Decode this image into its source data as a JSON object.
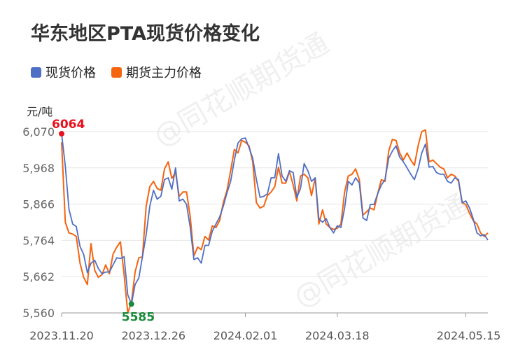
{
  "title": "华东地区PTA现货价格变化",
  "unit_label": "元/吨",
  "watermark": "@同花顺期货通",
  "colors": {
    "spot": "#4f6fc6",
    "futures": "#f5640f",
    "max": "#e8101c",
    "min": "#1a8a3a",
    "grid": "#e6e6e6"
  },
  "chart_data": {
    "type": "line",
    "title": "华东地区PTA现货价格变化",
    "ylabel": "元/吨",
    "ylim": [
      5560,
      6070
    ],
    "yticks": [
      5560,
      5662,
      5764,
      5866,
      5968,
      6070
    ],
    "ytick_labels": [
      "5,560",
      "5,662",
      "5,764",
      "5,866",
      "5,968",
      "6,070"
    ],
    "xtick_labels": [
      "2023.11.20",
      "2023.12.26",
      "2024.02.01",
      "2024.03.18",
      "2024.05.15"
    ],
    "xtick_index": [
      0,
      25,
      50,
      75,
      110
    ],
    "series": [
      {
        "name": "现货价格",
        "values": [
          6064,
          5973,
          5852,
          5810,
          5803,
          5747,
          5725,
          5673,
          5700,
          5708,
          5685,
          5670,
          5675,
          5675,
          5695,
          5715,
          5713,
          5718,
          5611,
          5585,
          5640,
          5658,
          5718,
          5780,
          5860,
          5905,
          5880,
          5888,
          5935,
          5940,
          5908,
          5968,
          5875,
          5880,
          5865,
          5800,
          5710,
          5715,
          5700,
          5750,
          5750,
          5790,
          5810,
          5830,
          5860,
          5898,
          5930,
          5990,
          6038,
          6050,
          6052,
          6025,
          5995,
          5935,
          5885,
          5888,
          5895,
          5940,
          5940,
          6008,
          5945,
          5930,
          5960,
          5955,
          5885,
          5910,
          5980,
          5960,
          5930,
          5940,
          5825,
          5815,
          5825,
          5800,
          5785,
          5805,
          5800,
          5855,
          5930,
          5920,
          5940,
          5925,
          5827,
          5820,
          5865,
          5865,
          5895,
          5920,
          5935,
          5995,
          6015,
          6030,
          5998,
          5985,
          5968,
          5950,
          5935,
          5965,
          6010,
          6035,
          5970,
          5972,
          5955,
          5950,
          5950,
          5930,
          5925,
          5940,
          5935,
          5870,
          5875,
          5855,
          5825,
          5785,
          5777,
          5780,
          5765
        ]
      },
      {
        "name": "期货主力价格",
        "values": [
          6040,
          5815,
          5785,
          5782,
          5775,
          5700,
          5660,
          5640,
          5755,
          5680,
          5660,
          5668,
          5695,
          5670,
          5725,
          5745,
          5760,
          5668,
          5560,
          5590,
          5675,
          5715,
          5718,
          5860,
          5915,
          5930,
          5910,
          5905,
          5965,
          5985,
          5938,
          5955,
          5888,
          5900,
          5900,
          5830,
          5720,
          5745,
          5738,
          5775,
          5765,
          5805,
          5800,
          5820,
          5870,
          5905,
          5960,
          6020,
          6010,
          6045,
          6040,
          6030,
          5985,
          5870,
          5855,
          5860,
          5890,
          5900,
          5915,
          5970,
          5925,
          5925,
          5958,
          5920,
          5875,
          5945,
          5950,
          5940,
          5890,
          5940,
          5810,
          5850,
          5810,
          5800,
          5795,
          5798,
          5810,
          5900,
          5945,
          5950,
          5965,
          5935,
          5835,
          5845,
          5855,
          5850,
          5895,
          5935,
          5930,
          6015,
          6048,
          6045,
          6010,
          5990,
          6010,
          5990,
          5975,
          6030,
          6070,
          6075,
          5985,
          5990,
          5980,
          5970,
          5965,
          5940,
          5950,
          5945,
          5930,
          5870,
          5865,
          5840,
          5820,
          5810,
          5785,
          5775,
          5785
        ]
      }
    ],
    "annotations": [
      {
        "label": "6064",
        "series": "现货价格",
        "index": 0,
        "value": 6064,
        "kind": "max"
      },
      {
        "label": "5585",
        "series": "现货价格",
        "index": 19,
        "value": 5585,
        "kind": "min"
      }
    ]
  }
}
